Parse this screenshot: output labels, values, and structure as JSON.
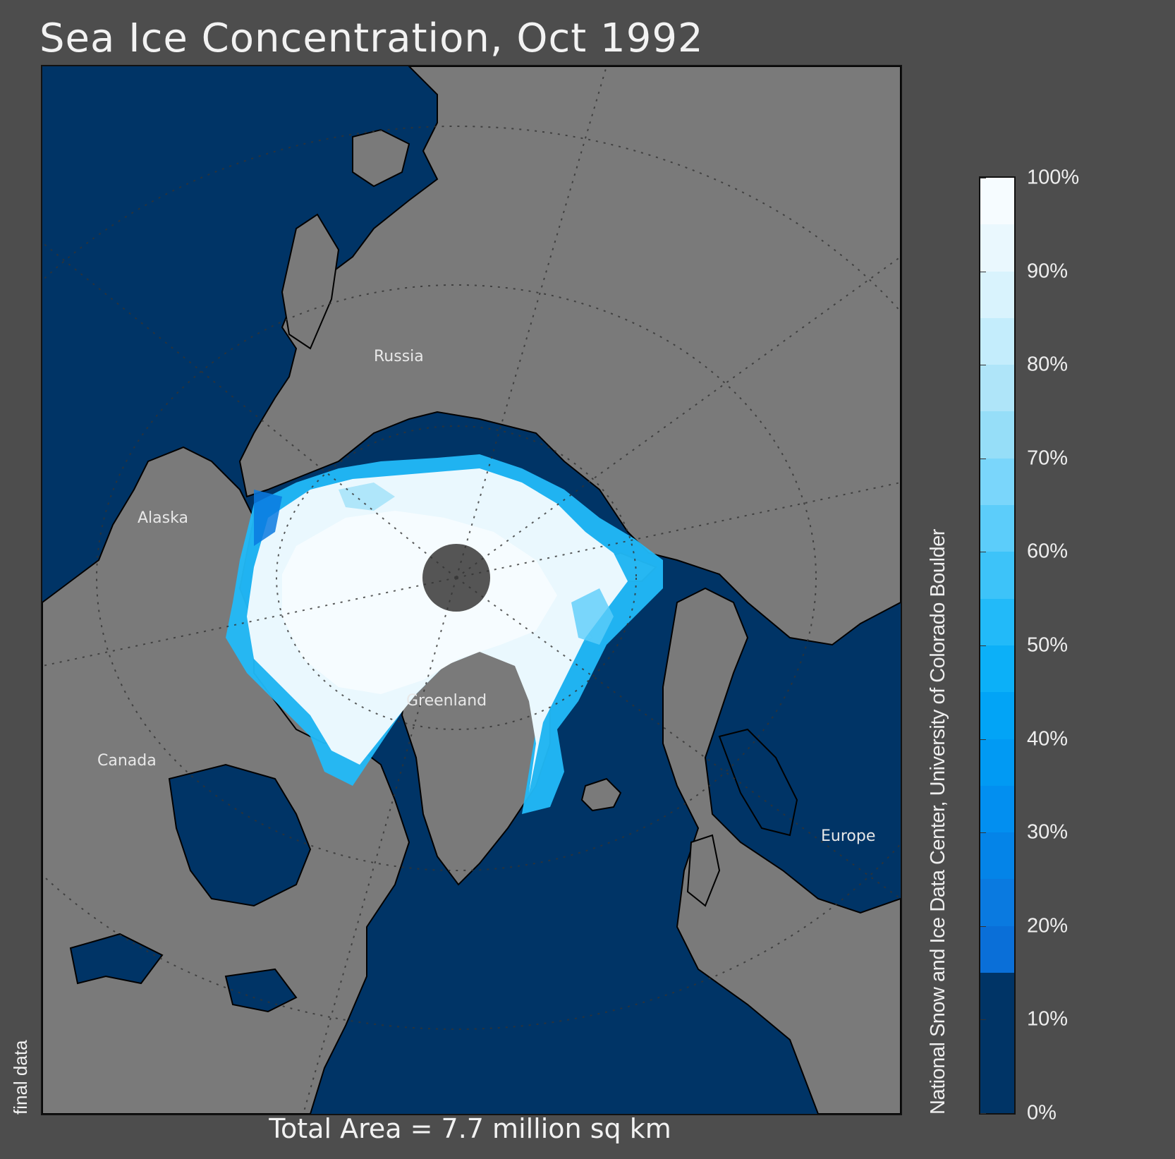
{
  "title": "Sea Ice Concentration, Oct 1992",
  "total_area": "Total Area = 7.7 million sq km",
  "data_status": "final data",
  "credit": "National Snow and Ice Data Center, University of Colorado Boulder",
  "regions": {
    "russia": "Russia",
    "alaska": "Alaska",
    "canada": "Canada",
    "greenland": "Greenland",
    "europe": "Europe"
  },
  "colorbar": {
    "tick_labels": [
      "100%",
      "90%",
      "80%",
      "70%",
      "60%",
      "50%",
      "40%",
      "30%",
      "20%",
      "10%",
      "0%"
    ],
    "colors": [
      "#003466",
      "#003466",
      "#003466",
      "#0a6fd8",
      "#0a7ae0",
      "#0484e8",
      "#028ff0",
      "#019af3",
      "#02a4f6",
      "#0cb0f8",
      "#22baf9",
      "#3dc3f9",
      "#5ccdfa",
      "#7ad6fb",
      "#96def8",
      "#afe5f9",
      "#c4edfc",
      "#d9f3fd",
      "#eaf8fe",
      "#f6fcff"
    ],
    "colors_order": "bottom-to-top"
  },
  "colors": {
    "ocean": "#003466",
    "land": "#7a7a7a",
    "background": "#4d4d4d",
    "pole_hole": "#555555"
  }
}
